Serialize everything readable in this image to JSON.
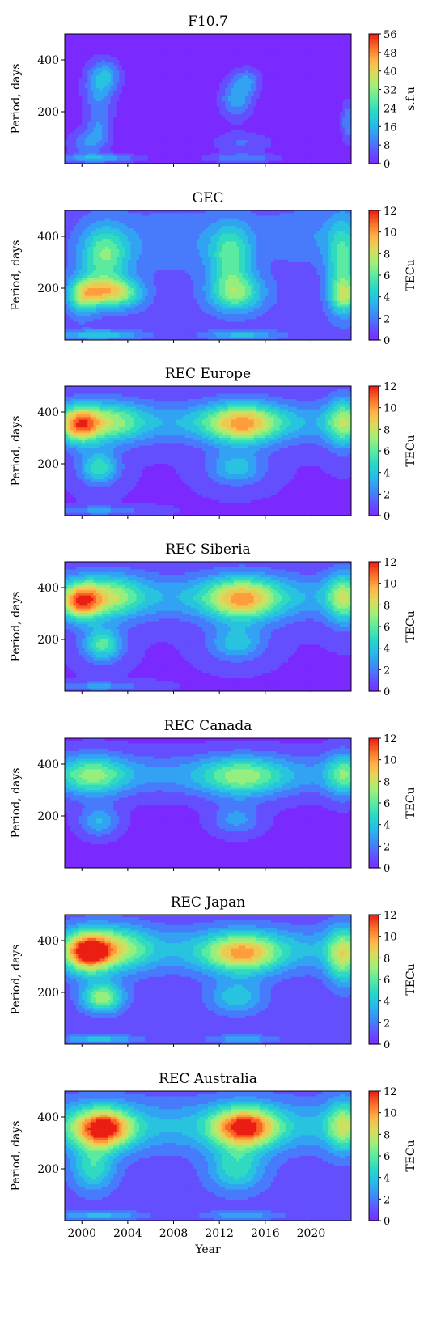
{
  "chart_data": [
    {
      "type": "heatmap",
      "title": "F10.7",
      "ylabel": "Period, days",
      "xlim": [
        1998.5,
        2023.5
      ],
      "ylim": [
        0,
        500
      ],
      "yticks": [
        200,
        400
      ],
      "xticks": [
        2000,
        2004,
        2008,
        2012,
        2016,
        2020
      ],
      "xticklabels_shown": false,
      "colorbar": {
        "ticks": [
          0,
          8,
          16,
          24,
          32,
          40,
          48,
          56
        ],
        "label": "s.f.u",
        "range": [
          0,
          56
        ]
      },
      "blobs": [
        {
          "year": 2001.5,
          "period": 290,
          "intensity": 0.25,
          "sx": 1.0,
          "sy": 70
        },
        {
          "year": 2002.2,
          "period": 340,
          "intensity": 0.2,
          "sx": 0.9,
          "sy": 40
        },
        {
          "year": 2000.5,
          "period": 80,
          "intensity": 0.22,
          "sx": 1.2,
          "sy": 35
        },
        {
          "year": 2001.5,
          "period": 150,
          "intensity": 0.18,
          "sx": 0.8,
          "sy": 50
        },
        {
          "year": 2013.5,
          "period": 250,
          "intensity": 0.28,
          "sx": 1.0,
          "sy": 55
        },
        {
          "year": 2014.5,
          "period": 320,
          "intensity": 0.2,
          "sx": 0.8,
          "sy": 35
        },
        {
          "year": 2014.0,
          "period": 80,
          "intensity": 0.15,
          "sx": 2.0,
          "sy": 30
        },
        {
          "year": 2023.2,
          "period": 160,
          "intensity": 0.22,
          "sx": 0.4,
          "sy": 60
        },
        {
          "year": 2001.5,
          "period": 20,
          "intensity": 0.3,
          "sx": 2.5,
          "sy": 12
        },
        {
          "year": 2014.0,
          "period": 20,
          "intensity": 0.22,
          "sx": 2.2,
          "sy": 12
        }
      ]
    },
    {
      "type": "heatmap",
      "title": "GEC",
      "ylabel": "Period, days",
      "xlim": [
        1998.5,
        2023.5
      ],
      "ylim": [
        0,
        500
      ],
      "yticks": [
        200,
        400
      ],
      "xticks": [
        2000,
        2004,
        2008,
        2012,
        2016,
        2020
      ],
      "xticklabels_shown": false,
      "colorbar": {
        "ticks": [
          0,
          2,
          4,
          6,
          8,
          10,
          12
        ],
        "label": "TECu",
        "range": [
          0,
          12
        ]
      },
      "background_level": 0.12,
      "blobs": [
        {
          "year": 2002.0,
          "period": 330,
          "intensity": 0.45,
          "sx": 1.5,
          "sy": 80
        },
        {
          "year": 2001.8,
          "period": 185,
          "intensity": 0.55,
          "sx": 1.4,
          "sy": 40
        },
        {
          "year": 2000.0,
          "period": 170,
          "intensity": 0.4,
          "sx": 0.9,
          "sy": 50
        },
        {
          "year": 2004.0,
          "period": 180,
          "intensity": 0.3,
          "sx": 1.2,
          "sy": 40
        },
        {
          "year": 2013.0,
          "period": 320,
          "intensity": 0.4,
          "sx": 1.3,
          "sy": 90
        },
        {
          "year": 2013.5,
          "period": 180,
          "intensity": 0.42,
          "sx": 1.7,
          "sy": 50
        },
        {
          "year": 2022.8,
          "period": 300,
          "intensity": 0.4,
          "sx": 1.0,
          "sy": 120
        },
        {
          "year": 2022.8,
          "period": 170,
          "intensity": 0.38,
          "sx": 0.8,
          "sy": 45
        },
        {
          "year": 2008.0,
          "period": 380,
          "intensity": 0.12,
          "sx": 4.0,
          "sy": 80
        },
        {
          "year": 2019.5,
          "period": 400,
          "intensity": 0.12,
          "sx": 3.0,
          "sy": 70
        },
        {
          "year": 2001.5,
          "period": 20,
          "intensity": 0.3,
          "sx": 2.5,
          "sy": 12
        },
        {
          "year": 2014.0,
          "period": 20,
          "intensity": 0.25,
          "sx": 2.2,
          "sy": 12
        }
      ]
    },
    {
      "type": "heatmap",
      "title": "REC Europe",
      "ylabel": "Period, days",
      "xlim": [
        1998.5,
        2023.5
      ],
      "ylim": [
        0,
        500
      ],
      "yticks": [
        200,
        400
      ],
      "xticks": [
        2000,
        2004,
        2008,
        2012,
        2016,
        2020
      ],
      "xticklabels_shown": false,
      "colorbar": {
        "ticks": [
          0,
          2,
          4,
          6,
          8,
          10,
          12
        ],
        "label": "TECu",
        "range": [
          0,
          12
        ]
      },
      "background_level": 0.08,
      "band": {
        "period": 360,
        "intensity": 0.22,
        "sy": 55
      },
      "blobs": [
        {
          "year": 1999.8,
          "period": 350,
          "intensity": 0.6,
          "sx": 1.2,
          "sy": 50
        },
        {
          "year": 2002.5,
          "period": 360,
          "intensity": 0.35,
          "sx": 2.0,
          "sy": 55
        },
        {
          "year": 2014.0,
          "period": 355,
          "intensity": 0.6,
          "sx": 2.3,
          "sy": 55
        },
        {
          "year": 2022.8,
          "period": 360,
          "intensity": 0.4,
          "sx": 1.0,
          "sy": 70
        },
        {
          "year": 2001.5,
          "period": 185,
          "intensity": 0.4,
          "sx": 1.2,
          "sy": 45
        },
        {
          "year": 2013.5,
          "period": 185,
          "intensity": 0.3,
          "sx": 1.7,
          "sy": 45
        },
        {
          "year": 2001.5,
          "period": 20,
          "intensity": 0.2,
          "sx": 2.5,
          "sy": 12
        }
      ]
    },
    {
      "type": "heatmap",
      "title": "REC Siberia",
      "ylabel": "Period, days",
      "xlim": [
        1998.5,
        2023.5
      ],
      "ylim": [
        0,
        500
      ],
      "yticks": [
        200,
        400
      ],
      "xticks": [
        2000,
        2004,
        2008,
        2012,
        2016,
        2020
      ],
      "xticklabels_shown": false,
      "colorbar": {
        "ticks": [
          0,
          2,
          4,
          6,
          8,
          10,
          12
        ],
        "label": "TECu",
        "range": [
          0,
          12
        ]
      },
      "background_level": 0.08,
      "band": {
        "period": 365,
        "intensity": 0.22,
        "sy": 60
      },
      "blobs": [
        {
          "year": 1999.9,
          "period": 345,
          "intensity": 0.62,
          "sx": 1.2,
          "sy": 50
        },
        {
          "year": 2002.5,
          "period": 365,
          "intensity": 0.38,
          "sx": 2.0,
          "sy": 60
        },
        {
          "year": 2014.0,
          "period": 355,
          "intensity": 0.6,
          "sx": 2.3,
          "sy": 60
        },
        {
          "year": 2022.8,
          "period": 360,
          "intensity": 0.42,
          "sx": 1.0,
          "sy": 70
        },
        {
          "year": 2001.8,
          "period": 180,
          "intensity": 0.45,
          "sx": 1.2,
          "sy": 45
        },
        {
          "year": 2013.5,
          "period": 185,
          "intensity": 0.3,
          "sx": 1.7,
          "sy": 45
        },
        {
          "year": 2001.5,
          "period": 20,
          "intensity": 0.2,
          "sx": 2.5,
          "sy": 12
        }
      ]
    },
    {
      "type": "heatmap",
      "title": "REC Canada",
      "ylabel": "Period, days",
      "xlim": [
        1998.5,
        2023.5
      ],
      "ylim": [
        0,
        500
      ],
      "yticks": [
        200,
        400
      ],
      "xticks": [
        2000,
        2004,
        2008,
        2012,
        2016,
        2020
      ],
      "xticklabels_shown": false,
      "colorbar": {
        "ticks": [
          0,
          2,
          4,
          6,
          8,
          10,
          12
        ],
        "label": "TECu",
        "range": [
          0,
          12
        ]
      },
      "background_level": 0.06,
      "band": {
        "period": 360,
        "intensity": 0.2,
        "sy": 55
      },
      "blobs": [
        {
          "year": 2001.0,
          "period": 355,
          "intensity": 0.38,
          "sx": 2.0,
          "sy": 55
        },
        {
          "year": 2014.0,
          "period": 350,
          "intensity": 0.4,
          "sx": 2.5,
          "sy": 55
        },
        {
          "year": 2022.8,
          "period": 360,
          "intensity": 0.35,
          "sx": 1.0,
          "sy": 60
        },
        {
          "year": 2001.5,
          "period": 180,
          "intensity": 0.28,
          "sx": 1.2,
          "sy": 40
        },
        {
          "year": 2013.5,
          "period": 185,
          "intensity": 0.22,
          "sx": 1.5,
          "sy": 40
        }
      ]
    },
    {
      "type": "heatmap",
      "title": "REC Japan",
      "ylabel": "Period, days",
      "xlim": [
        1998.5,
        2023.5
      ],
      "ylim": [
        0,
        500
      ],
      "yticks": [
        200,
        400
      ],
      "xticks": [
        2000,
        2004,
        2008,
        2012,
        2016,
        2020
      ],
      "xticklabels_shown": false,
      "colorbar": {
        "ticks": [
          0,
          2,
          4,
          6,
          8,
          10,
          12
        ],
        "label": "TECu",
        "range": [
          0,
          12
        ]
      },
      "background_level": 0.1,
      "band": {
        "period": 365,
        "intensity": 0.22,
        "sy": 60
      },
      "blobs": [
        {
          "year": 2000.5,
          "period": 355,
          "intensity": 0.75,
          "sx": 1.4,
          "sy": 55
        },
        {
          "year": 2003.0,
          "period": 370,
          "intensity": 0.38,
          "sx": 2.0,
          "sy": 60
        },
        {
          "year": 2014.0,
          "period": 350,
          "intensity": 0.58,
          "sx": 2.3,
          "sy": 55
        },
        {
          "year": 2022.8,
          "period": 340,
          "intensity": 0.45,
          "sx": 1.0,
          "sy": 80
        },
        {
          "year": 2001.8,
          "period": 180,
          "intensity": 0.55,
          "sx": 1.3,
          "sy": 40
        },
        {
          "year": 2013.5,
          "period": 180,
          "intensity": 0.3,
          "sx": 1.7,
          "sy": 45
        },
        {
          "year": 2001.5,
          "period": 20,
          "intensity": 0.28,
          "sx": 2.5,
          "sy": 12
        },
        {
          "year": 2014.0,
          "period": 20,
          "intensity": 0.2,
          "sx": 2.2,
          "sy": 12
        }
      ]
    },
    {
      "type": "heatmap",
      "title": "REC Australia",
      "ylabel": "Period, days",
      "xlabel": "Year",
      "xlim": [
        1998.5,
        2023.5
      ],
      "ylim": [
        0,
        500
      ],
      "yticks": [
        200,
        400
      ],
      "xticks": [
        2000,
        2004,
        2008,
        2012,
        2016,
        2020
      ],
      "xticklabels": [
        "2000",
        "2004",
        "2008",
        "2012",
        "2016",
        "2020"
      ],
      "xticklabels_shown": true,
      "colorbar": {
        "ticks": [
          0,
          2,
          4,
          6,
          8,
          10,
          12
        ],
        "label": "TECu",
        "range": [
          0,
          12
        ]
      },
      "background_level": 0.12,
      "band": {
        "period": 365,
        "intensity": 0.22,
        "sy": 65
      },
      "blobs": [
        {
          "year": 2001.8,
          "period": 355,
          "intensity": 0.82,
          "sx": 1.8,
          "sy": 55
        },
        {
          "year": 2014.2,
          "period": 360,
          "intensity": 0.78,
          "sx": 2.0,
          "sy": 55
        },
        {
          "year": 2022.8,
          "period": 365,
          "intensity": 0.4,
          "sx": 1.0,
          "sy": 70
        },
        {
          "year": 2001.0,
          "period": 200,
          "intensity": 0.35,
          "sx": 1.3,
          "sy": 60
        },
        {
          "year": 2013.5,
          "period": 200,
          "intensity": 0.35,
          "sx": 1.7,
          "sy": 60
        },
        {
          "year": 2001.5,
          "period": 20,
          "intensity": 0.25,
          "sx": 2.5,
          "sy": 12
        },
        {
          "year": 2014.0,
          "period": 20,
          "intensity": 0.2,
          "sx": 2.2,
          "sy": 12
        }
      ]
    }
  ]
}
